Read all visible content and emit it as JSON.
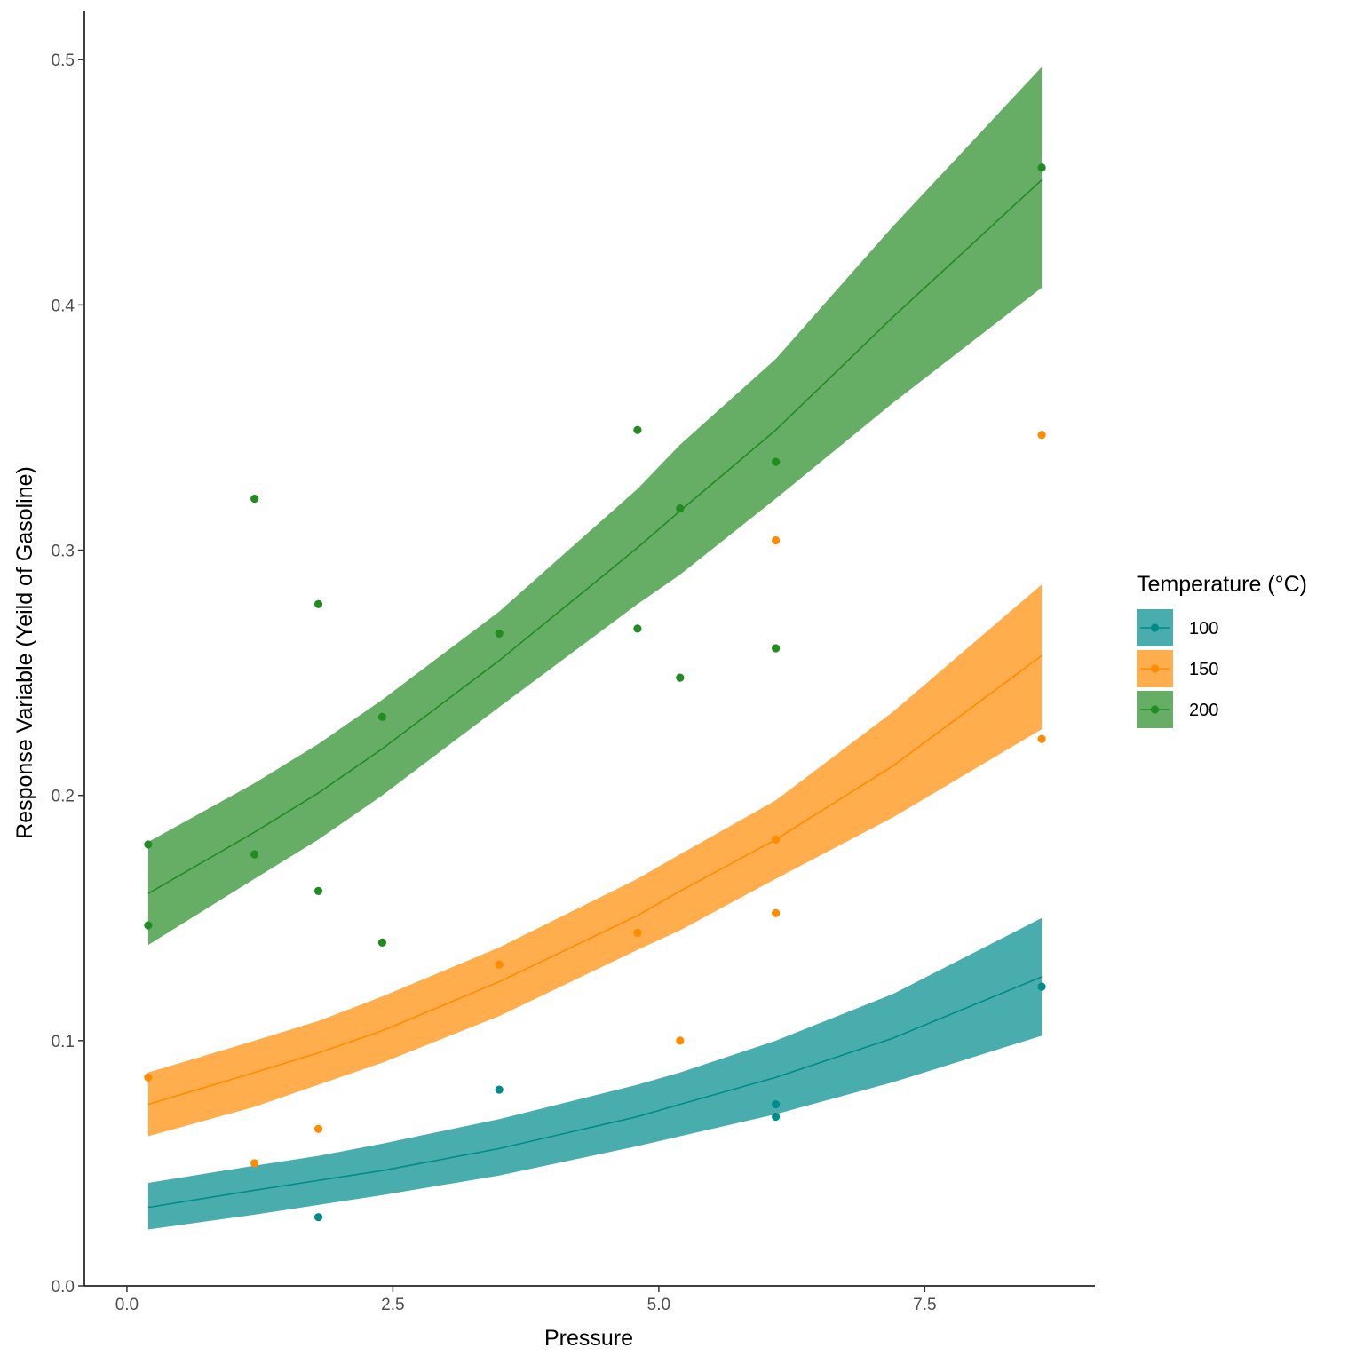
{
  "chart_data": {
    "type": "scatter",
    "xlabel": "Pressure",
    "ylabel": "Response Variable (Yeild of Gasoline)",
    "xlim": [
      -0.4,
      9.1
    ],
    "ylim": [
      0.0,
      0.52
    ],
    "x_ticks": [
      0.0,
      2.5,
      5.0,
      7.5
    ],
    "x_tick_labels": [
      "0.0",
      "2.5",
      "5.0",
      "7.5"
    ],
    "y_ticks": [
      0.0,
      0.1,
      0.2,
      0.3,
      0.4,
      0.5
    ],
    "y_tick_labels": [
      "0.0",
      "0.1",
      "0.2",
      "0.3",
      "0.4",
      "0.5"
    ],
    "grid": false,
    "legend": {
      "title": "Temperature (°C)",
      "placement": "right"
    },
    "series": [
      {
        "name": "100",
        "color": "#008B8B",
        "band_color": "#4AADAD",
        "points": [
          [
            1.8,
            0.028
          ],
          [
            3.5,
            0.08
          ],
          [
            6.1,
            0.074
          ],
          [
            6.1,
            0.069
          ],
          [
            8.6,
            0.122
          ]
        ],
        "fit_x": [
          0.2,
          1.2,
          1.8,
          2.4,
          3.5,
          4.8,
          5.2,
          6.1,
          7.2,
          8.6
        ],
        "fit": [
          0.032,
          0.039,
          0.043,
          0.047,
          0.056,
          0.069,
          0.074,
          0.085,
          0.101,
          0.126
        ],
        "lower": [
          0.023,
          0.029,
          0.033,
          0.037,
          0.045,
          0.057,
          0.061,
          0.07,
          0.083,
          0.102
        ],
        "upper": [
          0.042,
          0.049,
          0.053,
          0.058,
          0.068,
          0.082,
          0.087,
          0.1,
          0.119,
          0.15
        ]
      },
      {
        "name": "150",
        "color": "#FF8C00",
        "band_color": "#FFAD4D",
        "points": [
          [
            0.2,
            0.085
          ],
          [
            1.2,
            0.05
          ],
          [
            1.8,
            0.064
          ],
          [
            3.5,
            0.131
          ],
          [
            4.8,
            0.144
          ],
          [
            5.2,
            0.1
          ],
          [
            6.1,
            0.304
          ],
          [
            6.1,
            0.182
          ],
          [
            6.1,
            0.152
          ],
          [
            8.6,
            0.347
          ],
          [
            8.6,
            0.223
          ]
        ],
        "fit_x": [
          0.2,
          1.2,
          1.8,
          2.4,
          3.5,
          4.8,
          5.2,
          6.1,
          7.2,
          8.6
        ],
        "fit": [
          0.074,
          0.087,
          0.095,
          0.104,
          0.124,
          0.151,
          0.161,
          0.182,
          0.212,
          0.257
        ],
        "lower": [
          0.061,
          0.073,
          0.082,
          0.091,
          0.11,
          0.137,
          0.145,
          0.166,
          0.191,
          0.227
        ],
        "upper": [
          0.087,
          0.1,
          0.108,
          0.118,
          0.138,
          0.166,
          0.176,
          0.198,
          0.234,
          0.286
        ]
      },
      {
        "name": "200",
        "color": "#228B22",
        "band_color": "#66AD66",
        "points": [
          [
            0.2,
            0.18
          ],
          [
            0.2,
            0.147
          ],
          [
            1.2,
            0.321
          ],
          [
            1.2,
            0.176
          ],
          [
            1.8,
            0.278
          ],
          [
            1.8,
            0.161
          ],
          [
            2.4,
            0.232
          ],
          [
            2.4,
            0.14
          ],
          [
            3.5,
            0.266
          ],
          [
            4.8,
            0.349
          ],
          [
            4.8,
            0.268
          ],
          [
            5.2,
            0.317
          ],
          [
            5.2,
            0.248
          ],
          [
            6.1,
            0.336
          ],
          [
            6.1,
            0.26
          ],
          [
            8.6,
            0.456
          ]
        ],
        "fit_x": [
          0.2,
          1.2,
          1.8,
          2.4,
          3.5,
          4.8,
          5.2,
          6.1,
          7.2,
          8.6
        ],
        "fit": [
          0.16,
          0.185,
          0.201,
          0.219,
          0.255,
          0.301,
          0.316,
          0.349,
          0.395,
          0.451
        ],
        "lower": [
          0.139,
          0.166,
          0.182,
          0.2,
          0.236,
          0.278,
          0.29,
          0.321,
          0.36,
          0.407
        ],
        "upper": [
          0.181,
          0.205,
          0.221,
          0.239,
          0.275,
          0.325,
          0.343,
          0.378,
          0.432,
          0.497
        ]
      }
    ]
  }
}
